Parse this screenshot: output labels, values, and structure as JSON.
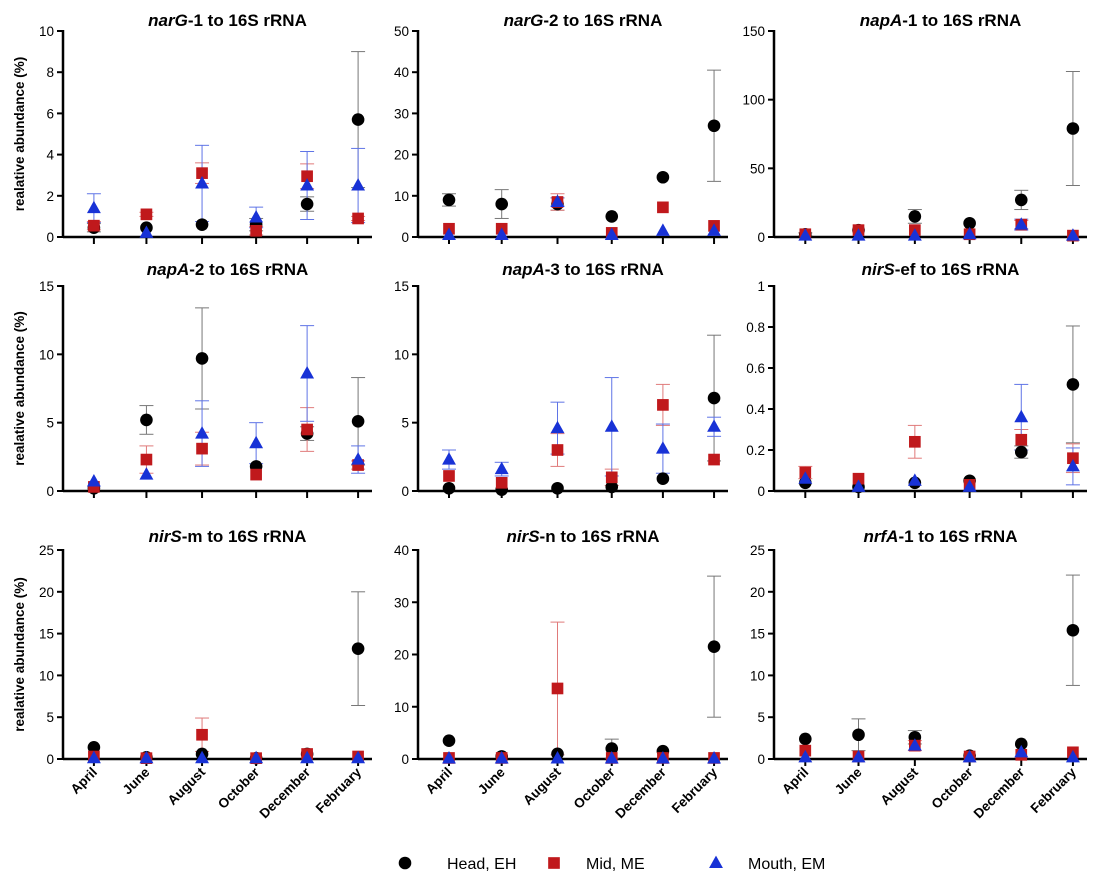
{
  "figure": {
    "ylabel": "realative abundance (%)",
    "months": [
      "April",
      "June",
      "August",
      "October",
      "December",
      "February"
    ],
    "legend": [
      {
        "label": "Head, EH",
        "marker": "circle",
        "color": "#000000"
      },
      {
        "label": "Mid, ME",
        "marker": "square",
        "color": "#c0191c"
      },
      {
        "label": "Mouth, EM",
        "marker": "triangle",
        "color": "#1832d6"
      }
    ]
  },
  "chart_data": [
    {
      "type": "scatter",
      "title": {
        "gene": "narG",
        "suffix": "-1 to 16S rRNA"
      },
      "ylim": [
        0,
        10
      ],
      "yticks": [
        0,
        2,
        4,
        6,
        8,
        10
      ],
      "series": [
        {
          "name": "Head, EH",
          "values": [
            0.45,
            0.45,
            0.6,
            0.6,
            1.6,
            5.7
          ],
          "err": [
            0.2,
            0,
            0,
            0.3,
            0.35,
            3.3
          ]
        },
        {
          "name": "Mid, ME",
          "values": [
            0.55,
            1.1,
            3.1,
            0.3,
            2.95,
            0.9
          ],
          "err": [
            0.2,
            0.1,
            0.5,
            0.2,
            0.6,
            0.1
          ]
        },
        {
          "name": "Mouth, EM",
          "values": [
            1.4,
            0.2,
            2.6,
            0.95,
            2.5,
            2.5
          ],
          "err": [
            0.7,
            0,
            1.85,
            0.5,
            1.65,
            1.8
          ]
        }
      ]
    },
    {
      "type": "scatter",
      "title": {
        "gene": "narG",
        "suffix": "-2 to 16S rRNA"
      },
      "ylim": [
        0,
        50
      ],
      "yticks": [
        0,
        10,
        20,
        30,
        40,
        50
      ],
      "series": [
        {
          "name": "Head, EH",
          "values": [
            9,
            8,
            8,
            5,
            14.5,
            27
          ],
          "err": [
            1.5,
            3.5,
            1.5,
            0,
            0,
            13.5
          ]
        },
        {
          "name": "Mid, ME",
          "values": [
            2,
            2,
            8.5,
            1,
            7.2,
            2.7
          ],
          "err": [
            0,
            0,
            2,
            0,
            0,
            0
          ]
        },
        {
          "name": "Mouth, EM",
          "values": [
            0.5,
            0.5,
            8.5,
            0.5,
            1.5,
            1.5
          ],
          "err": [
            0,
            0,
            1,
            0,
            0,
            0
          ]
        }
      ]
    },
    {
      "type": "scatter",
      "title": {
        "gene": "napA",
        "suffix": "-1 to 16S rRNA"
      },
      "ylim": [
        0,
        150
      ],
      "yticks": [
        0,
        50,
        100,
        150
      ],
      "series": [
        {
          "name": "Head, EH",
          "values": [
            2,
            5,
            15,
            10,
            27,
            79
          ],
          "err": [
            1,
            0,
            5,
            0,
            7,
            41.5
          ]
        },
        {
          "name": "Mid, ME",
          "values": [
            2,
            5,
            5,
            2,
            9,
            1
          ],
          "err": [
            0,
            0,
            0,
            0,
            3,
            0
          ]
        },
        {
          "name": "Mouth, EM",
          "values": [
            1,
            1,
            1,
            2,
            9,
            1
          ],
          "err": [
            0,
            0,
            0,
            0,
            4,
            0
          ]
        }
      ]
    },
    {
      "type": "scatter",
      "title": {
        "gene": "napA",
        "suffix": "-2 to 16S rRNA"
      },
      "ylim": [
        0,
        15
      ],
      "yticks": [
        0,
        5,
        10,
        15
      ],
      "series": [
        {
          "name": "Head, EH",
          "values": [
            0.2,
            5.2,
            9.7,
            1.8,
            4.2,
            5.1
          ],
          "err": [
            0,
            1.05,
            3.7,
            0,
            0.5,
            3.2
          ]
        },
        {
          "name": "Mid, ME",
          "values": [
            0.3,
            2.3,
            3.1,
            1.2,
            4.5,
            1.9
          ],
          "err": [
            0,
            1,
            1.2,
            0,
            1.6,
            0.3
          ]
        },
        {
          "name": "Mouth, EM",
          "values": [
            0.7,
            1.2,
            4.2,
            3.5,
            8.6,
            2.3
          ],
          "err": [
            0,
            0,
            2.4,
            1.5,
            3.5,
            1
          ]
        }
      ]
    },
    {
      "type": "scatter",
      "title": {
        "gene": "napA",
        "suffix": "-3 to 16S rRNA"
      },
      "ylim": [
        0,
        15
      ],
      "yticks": [
        0,
        5,
        10,
        15
      ],
      "series": [
        {
          "name": "Head, EH",
          "values": [
            0.2,
            0.1,
            0.2,
            0.3,
            0.9,
            6.8
          ],
          "err": [
            0,
            0,
            0,
            0,
            0,
            4.6
          ]
        },
        {
          "name": "Mid, ME",
          "values": [
            1.1,
            0.6,
            3,
            1,
            6.3,
            2.3
          ],
          "err": [
            0,
            0,
            1.2,
            0.6,
            1.5,
            0
          ]
        },
        {
          "name": "Mouth, EM",
          "values": [
            2.3,
            1.6,
            4.6,
            4.7,
            3.1,
            4.7
          ],
          "err": [
            0.7,
            0.5,
            1.9,
            3.6,
            1.8,
            0.7
          ]
        }
      ]
    },
    {
      "type": "scatter",
      "title": {
        "gene": "nirS",
        "suffix": "-ef to 16S rRNA"
      },
      "ylim": [
        0,
        1.0
      ],
      "yticks": [
        0,
        0.2,
        0.4,
        0.6,
        0.8,
        1.0
      ],
      "series": [
        {
          "name": "Head, EH",
          "values": [
            0.04,
            0.02,
            0.04,
            0.05,
            0.19,
            0.52
          ],
          "err": [
            0,
            0,
            0,
            0,
            0.03,
            0.285
          ]
        },
        {
          "name": "Mid, ME",
          "values": [
            0.09,
            0.06,
            0.24,
            0.03,
            0.25,
            0.16
          ],
          "err": [
            0.03,
            0,
            0.08,
            0,
            0.05,
            0.07
          ]
        },
        {
          "name": "Mouth, EM",
          "values": [
            0.06,
            0.02,
            0.05,
            0.02,
            0.36,
            0.12
          ],
          "err": [
            0,
            0,
            0,
            0,
            0.16,
            0.09
          ]
        }
      ]
    },
    {
      "type": "scatter",
      "title": {
        "gene": "nirS",
        "suffix": "-m to 16S rRNA"
      },
      "ylim": [
        0,
        25
      ],
      "yticks": [
        0,
        5,
        10,
        15,
        20,
        25
      ],
      "series": [
        {
          "name": "Head, EH",
          "values": [
            1.4,
            0.2,
            0.6,
            0.1,
            0.6,
            13.2
          ],
          "err": [
            0,
            0,
            0,
            0,
            0,
            6.8
          ]
        },
        {
          "name": "Mid, ME",
          "values": [
            0.3,
            0.1,
            2.9,
            0.1,
            0.6,
            0.3
          ],
          "err": [
            0,
            0,
            2,
            0,
            0,
            0
          ]
        },
        {
          "name": "Mouth, EM",
          "values": [
            0.1,
            0.1,
            0.1,
            0.1,
            0.1,
            0.1
          ],
          "err": [
            0,
            0,
            0,
            0,
            0,
            0
          ]
        }
      ]
    },
    {
      "type": "scatter",
      "title": {
        "gene": "nirS",
        "suffix": "-n to 16S rRNA"
      },
      "ylim": [
        0,
        40
      ],
      "yticks": [
        0,
        10,
        20,
        30,
        40
      ],
      "series": [
        {
          "name": "Head, EH",
          "values": [
            3.5,
            0.5,
            1,
            2,
            1.5,
            21.5
          ],
          "err": [
            0,
            0,
            0,
            1.8,
            0,
            13.5
          ]
        },
        {
          "name": "Mid, ME",
          "values": [
            0.2,
            0.2,
            13.5,
            0.2,
            0.2,
            0.2
          ],
          "err": [
            0,
            0,
            12.7,
            0,
            0,
            0
          ]
        },
        {
          "name": "Mouth, EM",
          "values": [
            0.1,
            0.1,
            0.1,
            0.1,
            0.1,
            0.1
          ],
          "err": [
            0,
            0,
            0,
            0,
            0,
            0
          ]
        }
      ]
    },
    {
      "type": "scatter",
      "title": {
        "gene": "nrfA",
        "suffix": "-1 to 16S rRNA"
      },
      "ylim": [
        0,
        25
      ],
      "yticks": [
        0,
        5,
        10,
        15,
        20,
        25
      ],
      "series": [
        {
          "name": "Head, EH",
          "values": [
            2.4,
            2.9,
            2.6,
            0.4,
            1.8,
            15.4
          ],
          "err": [
            0,
            1.9,
            0.8,
            0,
            0,
            6.6
          ]
        },
        {
          "name": "Mid, ME",
          "values": [
            1,
            0.3,
            1.6,
            0.3,
            0.5,
            0.8
          ],
          "err": [
            0,
            0,
            0.6,
            0,
            0,
            0
          ]
        },
        {
          "name": "Mouth, EM",
          "values": [
            0.2,
            0.2,
            1.6,
            0.2,
            0.8,
            0.2
          ],
          "err": [
            0,
            0,
            0,
            0,
            0,
            0
          ]
        }
      ]
    }
  ]
}
